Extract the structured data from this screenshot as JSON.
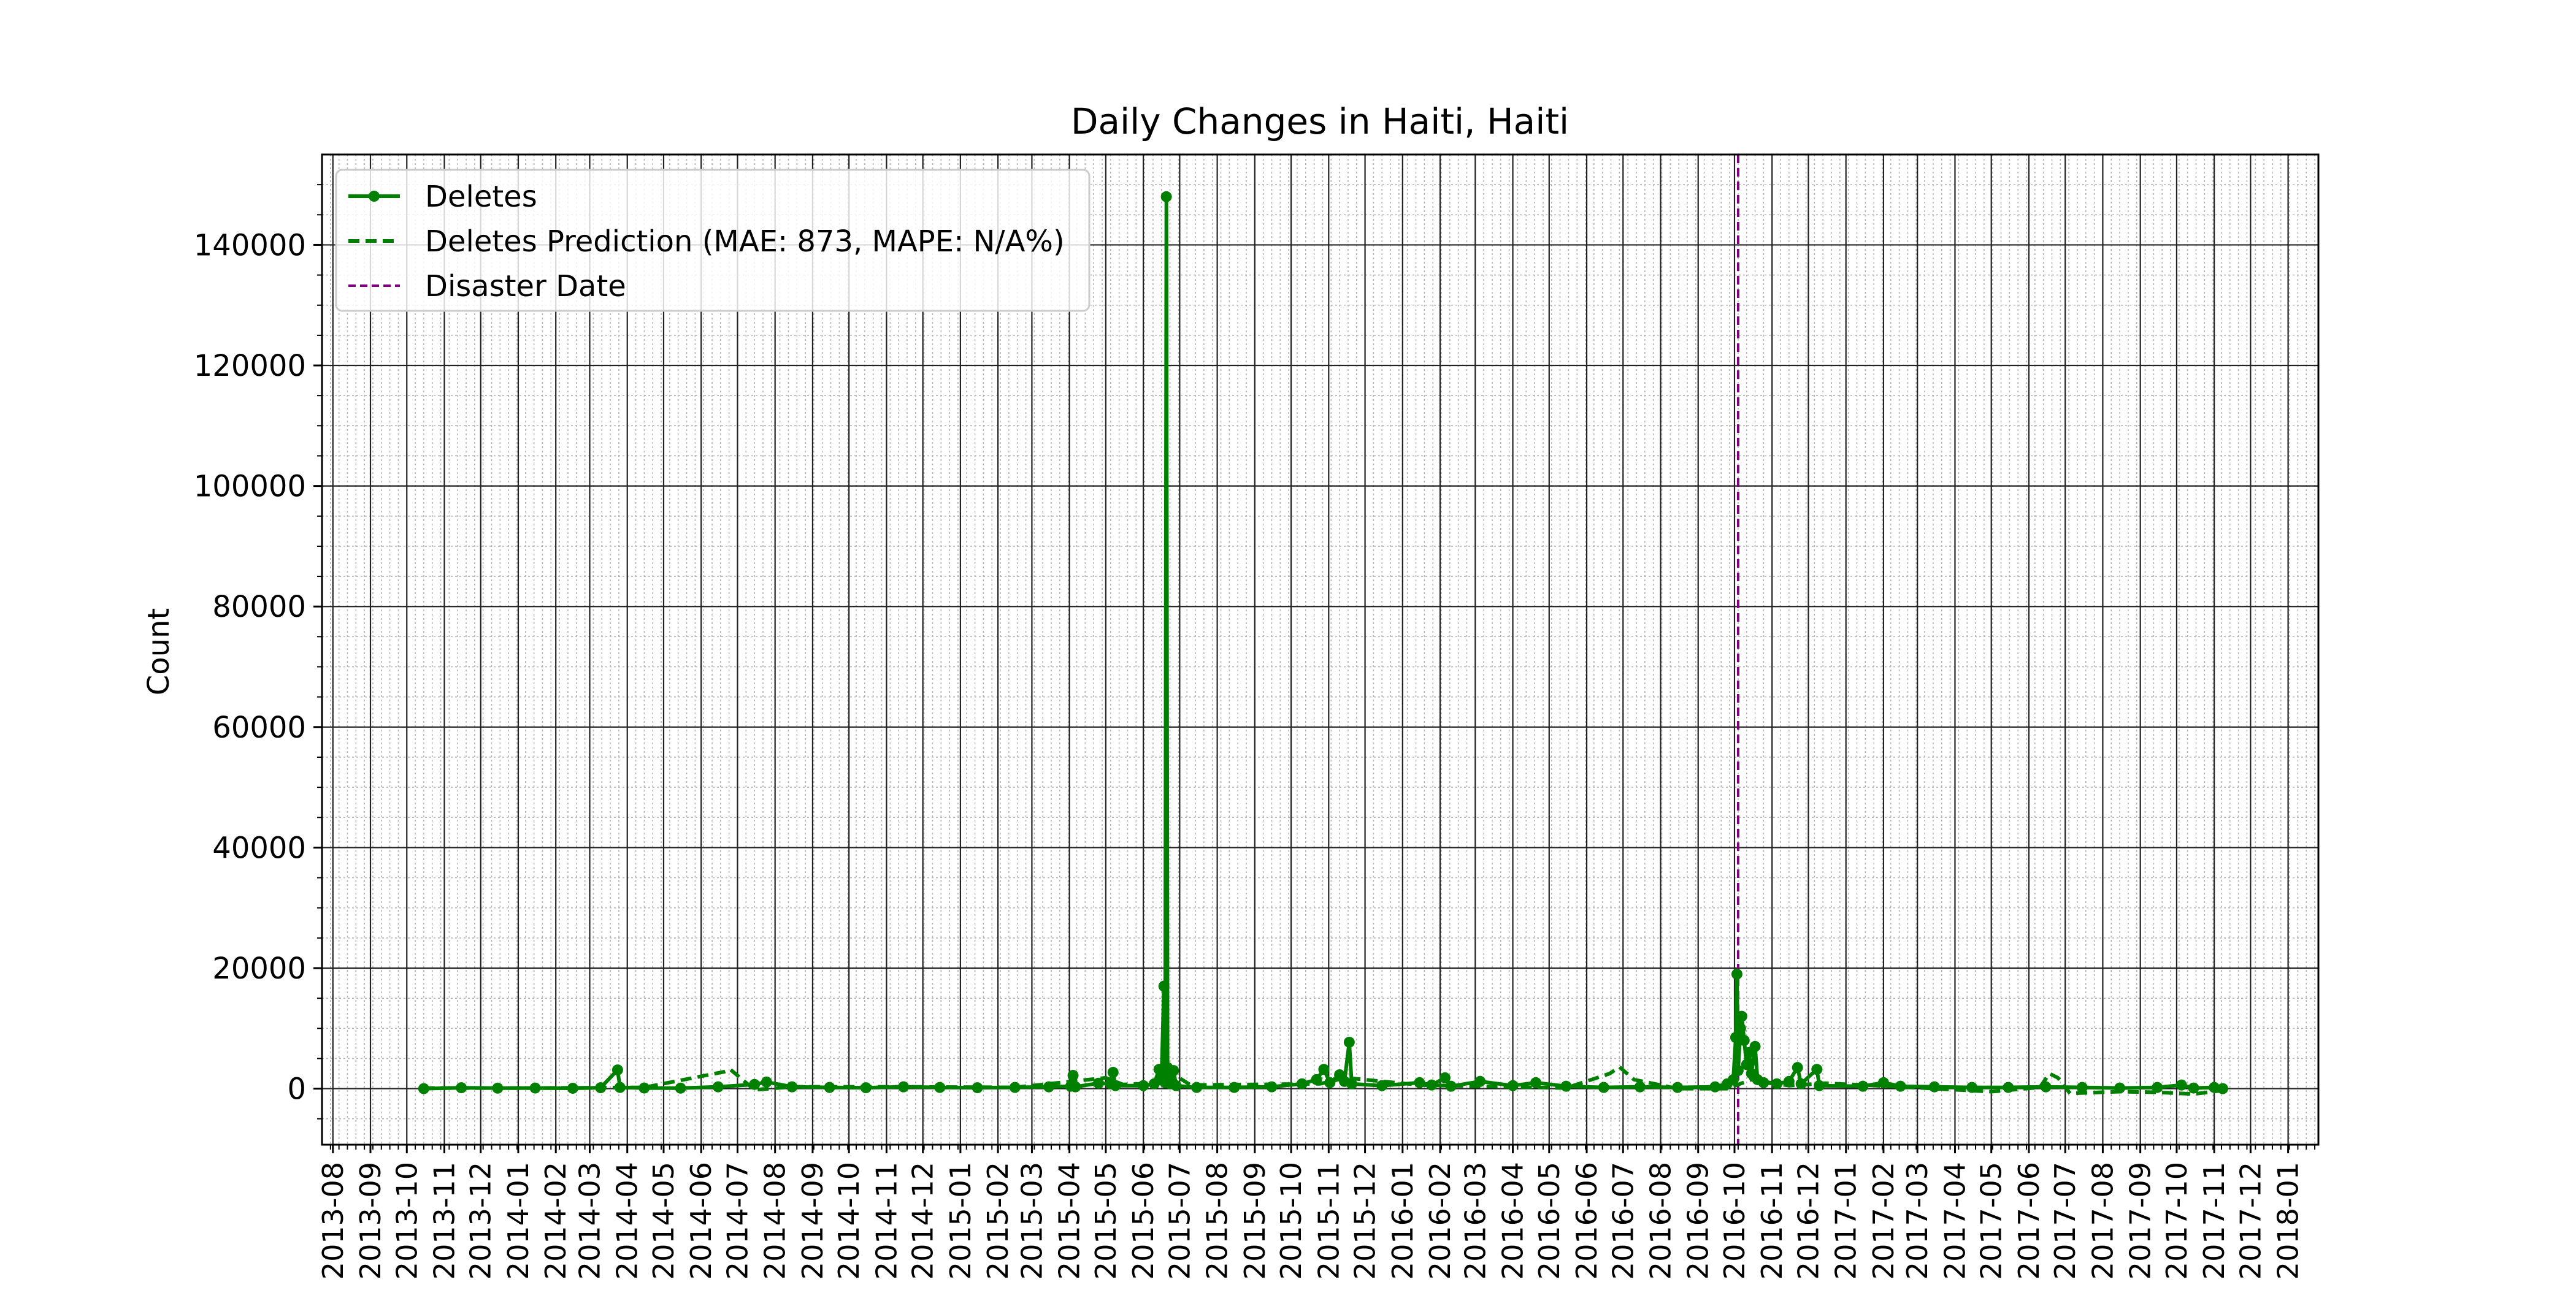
{
  "chart_data": {
    "type": "line",
    "title": "Daily Changes in Haiti, Haiti",
    "xlabel": "",
    "ylabel": "Count",
    "x_axis": "date",
    "xlim": [
      "2013-07-23",
      "2018-01-26"
    ],
    "ylim": [
      -9300,
      155000
    ],
    "y_ticks": [
      0,
      20000,
      40000,
      60000,
      80000,
      100000,
      120000,
      140000
    ],
    "y_tick_labels": [
      "0",
      "20000",
      "40000",
      "60000",
      "80000",
      "100000",
      "120000",
      "140000"
    ],
    "x_ticks": [
      "2013-08-01",
      "2013-09-01",
      "2013-10-01",
      "2013-11-01",
      "2013-12-01",
      "2014-01-01",
      "2014-02-01",
      "2014-03-01",
      "2014-04-01",
      "2014-05-01",
      "2014-06-01",
      "2014-07-01",
      "2014-08-01",
      "2014-09-01",
      "2014-10-01",
      "2014-11-01",
      "2014-12-01",
      "2015-01-01",
      "2015-02-01",
      "2015-03-01",
      "2015-04-01",
      "2015-05-01",
      "2015-06-01",
      "2015-07-01",
      "2015-08-01",
      "2015-09-01",
      "2015-10-01",
      "2015-11-01",
      "2015-12-01",
      "2016-01-01",
      "2016-02-01",
      "2016-03-01",
      "2016-04-01",
      "2016-05-01",
      "2016-06-01",
      "2016-07-01",
      "2016-08-01",
      "2016-09-01",
      "2016-10-01",
      "2016-11-01",
      "2016-12-01",
      "2017-01-01",
      "2017-02-01",
      "2017-03-01",
      "2017-04-01",
      "2017-05-01",
      "2017-06-01",
      "2017-07-01",
      "2017-08-01",
      "2017-09-01",
      "2017-10-01",
      "2017-11-01",
      "2017-12-01",
      "2018-01-01"
    ],
    "x_tick_labels": [
      "2013-08",
      "2013-09",
      "2013-10",
      "2013-11",
      "2013-12",
      "2014-01",
      "2014-02",
      "2014-03",
      "2014-04",
      "2014-05",
      "2014-06",
      "2014-07",
      "2014-08",
      "2014-09",
      "2014-10",
      "2014-11",
      "2014-12",
      "2015-01",
      "2015-02",
      "2015-03",
      "2015-04",
      "2015-05",
      "2015-06",
      "2015-07",
      "2015-08",
      "2015-09",
      "2015-10",
      "2015-11",
      "2015-12",
      "2016-01",
      "2016-02",
      "2016-03",
      "2016-04",
      "2016-05",
      "2016-06",
      "2016-07",
      "2016-08",
      "2016-09",
      "2016-10",
      "2016-11",
      "2016-12",
      "2017-01",
      "2017-02",
      "2017-03",
      "2017-04",
      "2017-05",
      "2017-06",
      "2017-07",
      "2017-08",
      "2017-09",
      "2017-10",
      "2017-11",
      "2017-12",
      "2018-01"
    ],
    "grid": true,
    "minor_grid": true,
    "legend": {
      "placement": "top-left",
      "entries": [
        {
          "label": "Deletes",
          "style": "solid-marker",
          "color": "#008000"
        },
        {
          "label": "Deletes Prediction (MAE: 873, MAPE: N/A%)",
          "style": "dashed",
          "color": "#008000"
        },
        {
          "label": "Disaster Date",
          "style": "dashed",
          "color": "#800080"
        }
      ]
    },
    "disaster_date": "2016-10-04",
    "series": [
      {
        "name": "Deletes",
        "color": "#008000",
        "points": [
          [
            "2013-10-15",
            0
          ],
          [
            "2013-11-15",
            150
          ],
          [
            "2013-12-15",
            80
          ],
          [
            "2014-01-15",
            100
          ],
          [
            "2014-02-15",
            60
          ],
          [
            "2014-03-10",
            150
          ],
          [
            "2014-03-24",
            3100
          ],
          [
            "2014-03-26",
            200
          ],
          [
            "2014-04-15",
            100
          ],
          [
            "2014-05-15",
            80
          ],
          [
            "2014-06-15",
            300
          ],
          [
            "2014-07-15",
            700
          ],
          [
            "2014-07-25",
            1100
          ],
          [
            "2014-08-15",
            300
          ],
          [
            "2014-09-15",
            200
          ],
          [
            "2014-10-15",
            150
          ],
          [
            "2014-11-15",
            300
          ],
          [
            "2014-12-15",
            200
          ],
          [
            "2015-01-15",
            150
          ],
          [
            "2015-02-15",
            200
          ],
          [
            "2015-03-15",
            300
          ],
          [
            "2015-04-02",
            400
          ],
          [
            "2015-04-04",
            2200
          ],
          [
            "2015-04-06",
            300
          ],
          [
            "2015-04-25",
            900
          ],
          [
            "2015-05-05",
            800
          ],
          [
            "2015-05-07",
            2700
          ],
          [
            "2015-05-09",
            500
          ],
          [
            "2015-06-01",
            500
          ],
          [
            "2015-06-10",
            800
          ],
          [
            "2015-06-14",
            3200
          ],
          [
            "2015-06-16",
            1500
          ],
          [
            "2015-06-18",
            17000
          ],
          [
            "2015-06-19",
            1000
          ],
          [
            "2015-06-20",
            148000
          ],
          [
            "2015-06-21",
            3500
          ],
          [
            "2015-06-23",
            800
          ],
          [
            "2015-06-26",
            3000
          ],
          [
            "2015-06-28",
            500
          ],
          [
            "2015-07-15",
            200
          ],
          [
            "2015-08-15",
            200
          ],
          [
            "2015-09-15",
            300
          ],
          [
            "2015-10-10",
            800
          ],
          [
            "2015-10-22",
            1500
          ],
          [
            "2015-10-28",
            3200
          ],
          [
            "2015-11-02",
            1000
          ],
          [
            "2015-11-10",
            2300
          ],
          [
            "2015-11-14",
            1200
          ],
          [
            "2015-11-18",
            7700
          ],
          [
            "2015-11-20",
            800
          ],
          [
            "2015-12-15",
            500
          ],
          [
            "2016-01-15",
            1000
          ],
          [
            "2016-01-25",
            600
          ],
          [
            "2016-02-05",
            1800
          ],
          [
            "2016-02-10",
            400
          ],
          [
            "2016-03-05",
            1200
          ],
          [
            "2016-04-01",
            500
          ],
          [
            "2016-04-20",
            1000
          ],
          [
            "2016-05-15",
            400
          ],
          [
            "2016-06-15",
            200
          ],
          [
            "2016-07-15",
            300
          ],
          [
            "2016-08-15",
            200
          ],
          [
            "2016-09-15",
            300
          ],
          [
            "2016-09-25",
            800
          ],
          [
            "2016-09-30",
            1500
          ],
          [
            "2016-10-02",
            8500
          ],
          [
            "2016-10-03",
            19000
          ],
          [
            "2016-10-04",
            3000
          ],
          [
            "2016-10-06",
            10000
          ],
          [
            "2016-10-07",
            12000
          ],
          [
            "2016-10-09",
            8000
          ],
          [
            "2016-10-11",
            4000
          ],
          [
            "2016-10-13",
            6000
          ],
          [
            "2016-10-15",
            2500
          ],
          [
            "2016-10-18",
            7000
          ],
          [
            "2016-10-20",
            1500
          ],
          [
            "2016-10-25",
            1000
          ],
          [
            "2016-11-05",
            800
          ],
          [
            "2016-11-15",
            1200
          ],
          [
            "2016-11-22",
            3500
          ],
          [
            "2016-11-25",
            800
          ],
          [
            "2016-12-08",
            3200
          ],
          [
            "2016-12-10",
            500
          ],
          [
            "2017-01-15",
            400
          ],
          [
            "2017-02-01",
            1000
          ],
          [
            "2017-02-15",
            400
          ],
          [
            "2017-03-15",
            300
          ],
          [
            "2017-04-15",
            200
          ],
          [
            "2017-05-15",
            200
          ],
          [
            "2017-06-15",
            300
          ],
          [
            "2017-07-15",
            200
          ],
          [
            "2017-08-15",
            100
          ],
          [
            "2017-09-15",
            200
          ],
          [
            "2017-10-05",
            600
          ],
          [
            "2017-10-15",
            100
          ],
          [
            "2017-11-01",
            200
          ],
          [
            "2017-11-08",
            0
          ]
        ]
      },
      {
        "name": "Deletes Prediction (MAE: 873, MAPE: N/A%)",
        "color": "#008000",
        "points": [
          [
            "2013-10-15",
            100
          ],
          [
            "2014-01-15",
            100
          ],
          [
            "2014-04-15",
            200
          ],
          [
            "2014-06-20",
            2800
          ],
          [
            "2014-06-25",
            3200
          ],
          [
            "2014-07-05",
            1500
          ],
          [
            "2014-07-15",
            -200
          ],
          [
            "2014-08-15",
            300
          ],
          [
            "2014-11-15",
            300
          ],
          [
            "2015-02-15",
            200
          ],
          [
            "2015-05-01",
            1800
          ],
          [
            "2015-05-15",
            700
          ],
          [
            "2015-06-15",
            900
          ],
          [
            "2015-06-25",
            2500
          ],
          [
            "2015-07-10",
            600
          ],
          [
            "2015-10-25",
            800
          ],
          [
            "2015-11-15",
            1800
          ],
          [
            "2016-01-15",
            600
          ],
          [
            "2016-05-15",
            100
          ],
          [
            "2016-06-20",
            2500
          ],
          [
            "2016-06-28",
            3600
          ],
          [
            "2016-07-10",
            1500
          ],
          [
            "2016-08-15",
            0
          ],
          [
            "2016-09-25",
            0
          ],
          [
            "2016-10-15",
            1500
          ],
          [
            "2016-11-15",
            500
          ],
          [
            "2016-12-15",
            900
          ],
          [
            "2017-02-15",
            300
          ],
          [
            "2017-05-01",
            -500
          ],
          [
            "2017-06-10",
            200
          ],
          [
            "2017-06-18",
            2500
          ],
          [
            "2017-06-25",
            1800
          ],
          [
            "2017-07-05",
            -800
          ],
          [
            "2017-08-15",
            -500
          ],
          [
            "2017-09-15",
            -600
          ],
          [
            "2017-10-15",
            -900
          ],
          [
            "2017-11-08",
            -300
          ]
        ]
      }
    ]
  }
}
